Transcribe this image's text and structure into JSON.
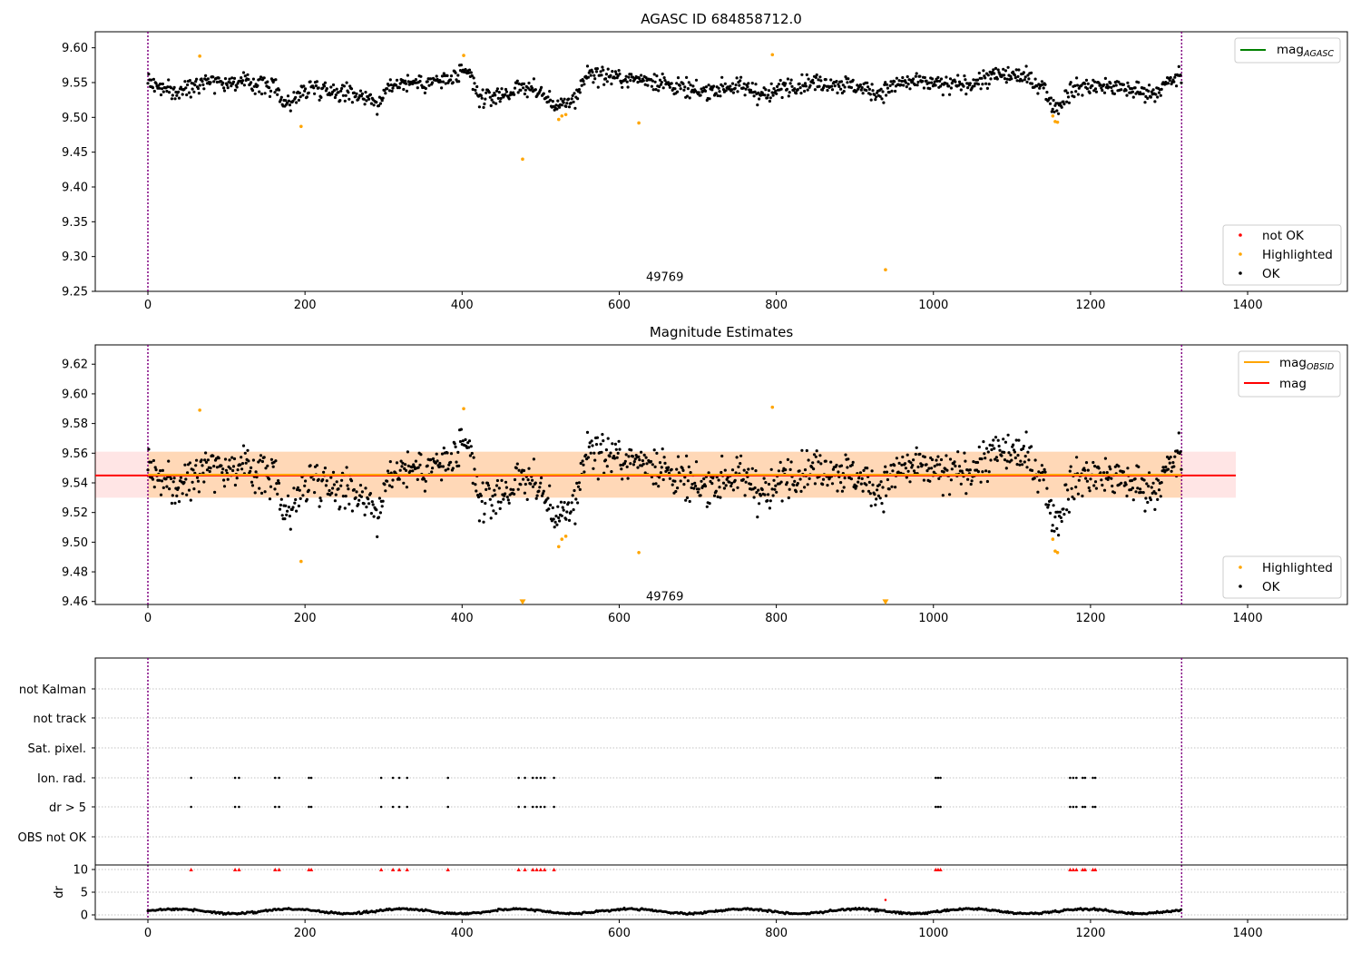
{
  "chart_data": [
    {
      "type": "scatter",
      "title": "AGASC ID 684858712.0",
      "xlim": [
        -67,
        1527
      ],
      "ylim": [
        9.25,
        9.623
      ],
      "xticks": [
        "0",
        "200",
        "400",
        "600",
        "800",
        "1000",
        "1200",
        "1400"
      ],
      "yticks": [
        "9.60",
        "9.55",
        "9.50",
        "9.45",
        "9.40",
        "9.35",
        "9.30",
        "9.25"
      ],
      "vlines": [
        0,
        1316
      ],
      "annotation": {
        "text": "49769",
        "x": 658,
        "y": 9.27
      },
      "legend_lines": [
        {
          "label": "mag",
          "sub": "AGASC",
          "color": "#008000"
        }
      ],
      "legend_points": [
        {
          "label": "not OK",
          "color": "#ff0000"
        },
        {
          "label": "Highlighted",
          "color": "#ffa500"
        },
        {
          "label": "OK",
          "color": "#000000"
        }
      ],
      "series": [
        {
          "name": "Highlighted",
          "color": "#ffa500",
          "x": [
            66,
            195,
            402,
            477,
            523,
            527,
            532,
            625,
            795,
            939,
            1152,
            1155,
            1158
          ],
          "y": [
            9.588,
            9.487,
            9.589,
            9.44,
            9.497,
            9.502,
            9.504,
            9.492,
            9.59,
            9.281,
            9.502,
            9.494,
            9.493
          ]
        }
      ],
      "ok_profile": {
        "x": [
          0,
          20,
          40,
          60,
          80,
          100,
          120,
          140,
          160,
          175,
          185,
          195,
          210,
          230,
          260,
          285,
          295,
          305,
          320,
          350,
          380,
          400,
          410,
          420,
          440,
          460,
          480,
          500,
          515,
          530,
          545,
          560,
          580,
          610,
          640,
          670,
          700,
          740,
          770,
          790,
          810,
          840,
          870,
          900,
          930,
          960,
          990,
          1020,
          1050,
          1080,
          1110,
          1140,
          1150,
          1160,
          1170,
          1190,
          1220,
          1250,
          1280,
          1300,
          1316
        ],
        "y": [
          9.553,
          9.54,
          9.535,
          9.55,
          9.555,
          9.55,
          9.55,
          9.548,
          9.545,
          9.52,
          9.525,
          9.535,
          9.545,
          9.54,
          9.535,
          9.528,
          9.515,
          9.545,
          9.55,
          9.55,
          9.553,
          9.56,
          9.565,
          9.528,
          9.53,
          9.535,
          9.545,
          9.535,
          9.52,
          9.515,
          9.53,
          9.565,
          9.56,
          9.555,
          9.555,
          9.545,
          9.535,
          9.545,
          9.54,
          9.53,
          9.545,
          9.55,
          9.55,
          9.545,
          9.535,
          9.55,
          9.55,
          9.545,
          9.55,
          9.56,
          9.56,
          9.545,
          9.52,
          9.515,
          9.535,
          9.545,
          9.545,
          9.54,
          9.535,
          9.55,
          9.56
        ]
      }
    },
    {
      "type": "scatter",
      "title": "Magnitude Estimates",
      "xlim": [
        -67,
        1527
      ],
      "ylim": [
        9.458,
        9.633
      ],
      "xticks": [
        "0",
        "200",
        "400",
        "600",
        "800",
        "1000",
        "1200",
        "1400"
      ],
      "yticks": [
        "9.62",
        "9.60",
        "9.58",
        "9.56",
        "9.54",
        "9.52",
        "9.50",
        "9.48",
        "9.46"
      ],
      "vlines": [
        0,
        1316
      ],
      "annotation": {
        "text": "49769",
        "x": 658,
        "y": 9.465
      },
      "mag": 9.545,
      "mag_obsid": 9.5455,
      "band": {
        "low": 9.53,
        "high": 9.561,
        "x": [
          -67,
          1385
        ]
      },
      "band_obsid": {
        "low": 9.53,
        "high": 9.561,
        "x": [
          0,
          1316
        ]
      },
      "legend_lines": [
        {
          "label": "mag",
          "sub": "OBSID",
          "color": "#ffa500"
        },
        {
          "label": "mag",
          "sub": "",
          "color": "#ff0000"
        }
      ],
      "legend_points": [
        {
          "label": "Highlighted",
          "color": "#ffa500"
        },
        {
          "label": "OK",
          "color": "#000000"
        }
      ],
      "series": [
        {
          "name": "Highlighted",
          "color": "#ffa500",
          "x": [
            66,
            195,
            402,
            523,
            527,
            532,
            625,
            795,
            1152,
            1155,
            1158
          ],
          "y": [
            9.589,
            9.487,
            9.59,
            9.497,
            9.502,
            9.504,
            9.493,
            9.591,
            9.502,
            9.494,
            9.493
          ]
        },
        {
          "name": "Highlighted (off-scale)",
          "color": "#ffa500",
          "marker": "triangle-down",
          "x": [
            477,
            939
          ],
          "y": [
            9.459,
            9.459
          ]
        }
      ]
    },
    {
      "type": "scatter",
      "xlim": [
        -67,
        1527
      ],
      "xticks": [
        "0",
        "200",
        "400",
        "600",
        "800",
        "1000",
        "1200",
        "1400"
      ],
      "flag_labels": [
        "not Kalman",
        "not track",
        "Sat. pixel.",
        "Ion. rad.",
        "dr > 5",
        "OBS not OK"
      ],
      "flag_x": [
        55,
        111,
        116,
        162,
        167,
        205,
        208,
        297,
        312,
        320,
        330,
        382,
        472,
        480,
        490,
        495,
        500,
        505,
        517,
        1003,
        1006,
        1009,
        1174,
        1178,
        1182,
        1190,
        1193,
        1203,
        1206
      ],
      "ylabel": "dr",
      "dr_yticks": [
        "10",
        "5",
        "0"
      ],
      "dr_ylim": [
        0,
        10
      ],
      "dr_outlier": {
        "x": 939,
        "y": 3.3
      },
      "vlines": [
        0,
        1316
      ]
    }
  ]
}
